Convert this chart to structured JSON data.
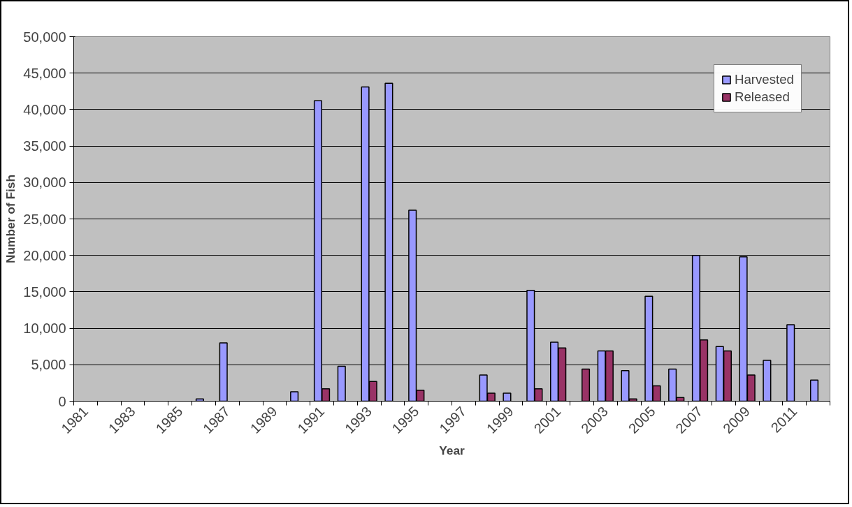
{
  "chart_data": {
    "type": "bar",
    "xlabel": "Year",
    "ylabel": "Number of Fish",
    "categories": [
      "1981",
      null,
      "1983",
      null,
      "1985",
      null,
      "1987",
      null,
      "1989",
      null,
      "1991",
      null,
      "1993",
      null,
      "1995",
      null,
      "1997",
      null,
      "1999",
      null,
      "2001",
      null,
      "2003",
      null,
      "2005",
      null,
      "2007",
      null,
      "2009",
      null,
      "2011",
      null
    ],
    "series": [
      {
        "name": "Harvested",
        "color": "#9999ff",
        "values": [
          null,
          null,
          null,
          null,
          null,
          300,
          8000,
          null,
          null,
          1300,
          41200,
          4800,
          43100,
          43600,
          26200,
          null,
          null,
          3600,
          1100,
          15200,
          8100,
          null,
          6900,
          4200,
          14400,
          4400,
          20000,
          7500,
          19800,
          5600,
          10500,
          2900
        ]
      },
      {
        "name": "Released",
        "color": "#993366",
        "values": [
          null,
          null,
          null,
          null,
          null,
          null,
          null,
          null,
          null,
          null,
          1700,
          null,
          2700,
          null,
          1500,
          null,
          null,
          1100,
          null,
          1700,
          7300,
          4400,
          6900,
          300,
          2100,
          500,
          8400,
          6900,
          3600,
          null,
          null,
          null
        ]
      }
    ],
    "ylim": [
      0,
      50000
    ],
    "yticks": [
      0,
      {
        "value": 5000,
        "label": "5,000"
      },
      {
        "value": 10000,
        "label": "10,000"
      },
      {
        "value": 15000,
        "label": "15,000"
      },
      {
        "value": 20000,
        "label": "20,000"
      },
      {
        "value": 25000,
        "label": "25,000"
      },
      {
        "value": 30000,
        "label": "30,000"
      },
      {
        "value": 35000,
        "label": "35,000"
      },
      {
        "value": 40000,
        "label": "40,000"
      },
      {
        "value": 45000,
        "label": "45,000"
      },
      {
        "value": 50000,
        "label": "50,000"
      }
    ],
    "grid": "y",
    "legend": "top right"
  }
}
